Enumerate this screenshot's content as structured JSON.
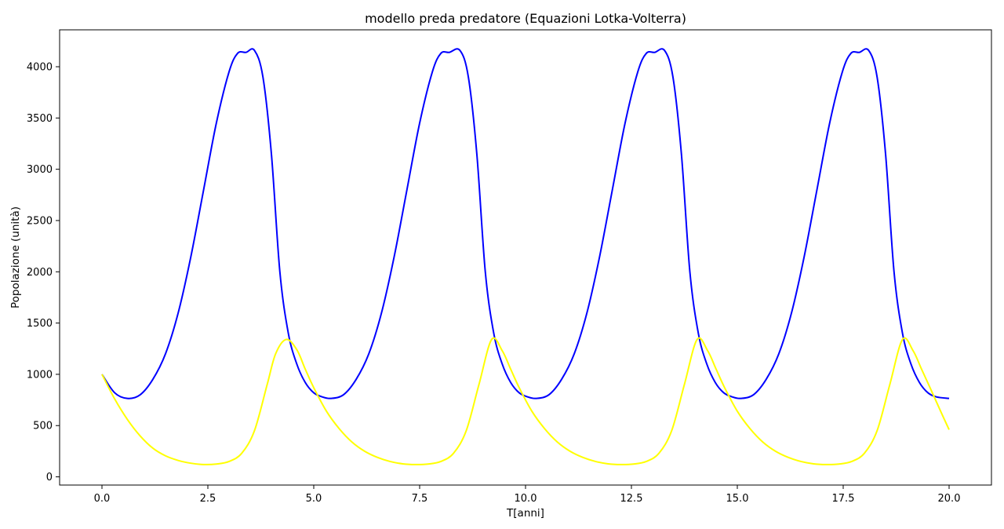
{
  "chart_data": {
    "type": "line",
    "title": "modello preda predatore (Equazioni Lotka-Volterra)",
    "xlabel": "T[anni]",
    "ylabel": "Popolazione (unità)",
    "xlim": [
      -1.0,
      21.0
    ],
    "ylim": [
      -80,
      4360
    ],
    "xticks": [
      0.0,
      2.5,
      5.0,
      7.5,
      10.0,
      12.5,
      15.0,
      17.5,
      20.0
    ],
    "xtick_labels": [
      "0.0",
      "2.5",
      "5.0",
      "7.5",
      "10.0",
      "12.5",
      "15.0",
      "17.5",
      "20.0"
    ],
    "yticks": [
      0,
      500,
      1000,
      1500,
      2000,
      2500,
      3000,
      3500,
      4000
    ],
    "ytick_labels": [
      "0",
      "500",
      "1000",
      "1500",
      "2000",
      "2500",
      "3000",
      "3500",
      "4000"
    ],
    "grid": false,
    "series": [
      {
        "color": "#0000ff",
        "x": [
          0.0,
          0.3,
          0.6,
          0.9,
          1.2,
          1.5,
          1.8,
          2.1,
          2.4,
          2.7,
          3.0,
          3.2,
          3.4,
          3.6,
          3.8,
          4.0,
          4.2,
          4.4,
          4.6,
          4.8,
          5.0,
          5.2,
          5.4,
          5.7,
          6.0,
          6.3,
          6.6,
          6.9,
          7.2,
          7.5,
          7.8,
          8.0,
          8.2,
          8.45,
          8.65,
          8.85,
          9.05,
          9.25,
          9.45,
          9.65,
          9.85,
          10.05,
          10.25,
          10.55,
          10.85,
          11.15,
          11.45,
          11.75,
          12.05,
          12.35,
          12.65,
          12.85,
          13.05,
          13.28,
          13.48,
          13.68,
          13.88,
          14.08,
          14.28,
          14.48,
          14.68,
          14.88,
          15.08,
          15.38,
          15.68,
          15.98,
          16.28,
          16.58,
          16.88,
          17.18,
          17.48,
          17.68,
          17.88,
          18.1,
          18.3,
          18.5,
          18.7,
          18.9,
          19.1,
          19.3,
          19.5,
          19.7,
          20.0
        ],
        "y": [
          1000,
          820,
          765,
          800,
          950,
          1200,
          1600,
          2150,
          2800,
          3450,
          3950,
          4130,
          4140,
          4160,
          3900,
          3150,
          2000,
          1400,
          1100,
          920,
          820,
          780,
          765,
          800,
          950,
          1200,
          1600,
          2150,
          2800,
          3450,
          3950,
          4130,
          4140,
          4160,
          3900,
          3150,
          2000,
          1400,
          1100,
          920,
          820,
          780,
          765,
          800,
          950,
          1200,
          1600,
          2150,
          2800,
          3450,
          3950,
          4130,
          4140,
          4160,
          3900,
          3150,
          2000,
          1400,
          1100,
          920,
          820,
          780,
          765,
          800,
          950,
          1200,
          1600,
          2150,
          2800,
          3450,
          3950,
          4130,
          4140,
          4160,
          3900,
          3150,
          2000,
          1400,
          1100,
          920,
          820,
          780,
          765
        ]
      },
      {
        "color": "#ffff00",
        "x": [
          0.0,
          0.3,
          0.6,
          0.9,
          1.2,
          1.5,
          1.8,
          2.1,
          2.4,
          2.7,
          3.0,
          3.3,
          3.6,
          3.9,
          4.1,
          4.35,
          4.6,
          4.8,
          5.0,
          5.3,
          5.6,
          5.9,
          6.2,
          6.5,
          6.8,
          7.1,
          7.4,
          7.7,
          8.0,
          8.3,
          8.6,
          8.9,
          9.2,
          9.45,
          9.65,
          9.85,
          10.15,
          10.45,
          10.75,
          11.05,
          11.35,
          11.65,
          11.95,
          12.25,
          12.55,
          12.85,
          13.15,
          13.45,
          13.75,
          14.05,
          14.3,
          14.5,
          14.7,
          15.0,
          15.3,
          15.6,
          15.9,
          16.2,
          16.5,
          16.8,
          17.1,
          17.4,
          17.7,
          18.0,
          18.3,
          18.6,
          18.9,
          19.15,
          19.35,
          19.55,
          19.8,
          20.0
        ],
        "y": [
          1000,
          760,
          560,
          400,
          280,
          205,
          160,
          133,
          120,
          125,
          150,
          230,
          450,
          900,
          1200,
          1340,
          1240,
          1050,
          870,
          640,
          470,
          340,
          250,
          190,
          150,
          127,
          120,
          125,
          150,
          230,
          450,
          900,
          1340,
          1230,
          1050,
          870,
          640,
          470,
          340,
          250,
          190,
          150,
          127,
          120,
          125,
          150,
          230,
          450,
          900,
          1340,
          1230,
          1050,
          870,
          640,
          470,
          340,
          250,
          190,
          150,
          127,
          120,
          125,
          150,
          230,
          450,
          900,
          1340,
          1230,
          1050,
          870,
          640,
          460
        ]
      }
    ]
  }
}
